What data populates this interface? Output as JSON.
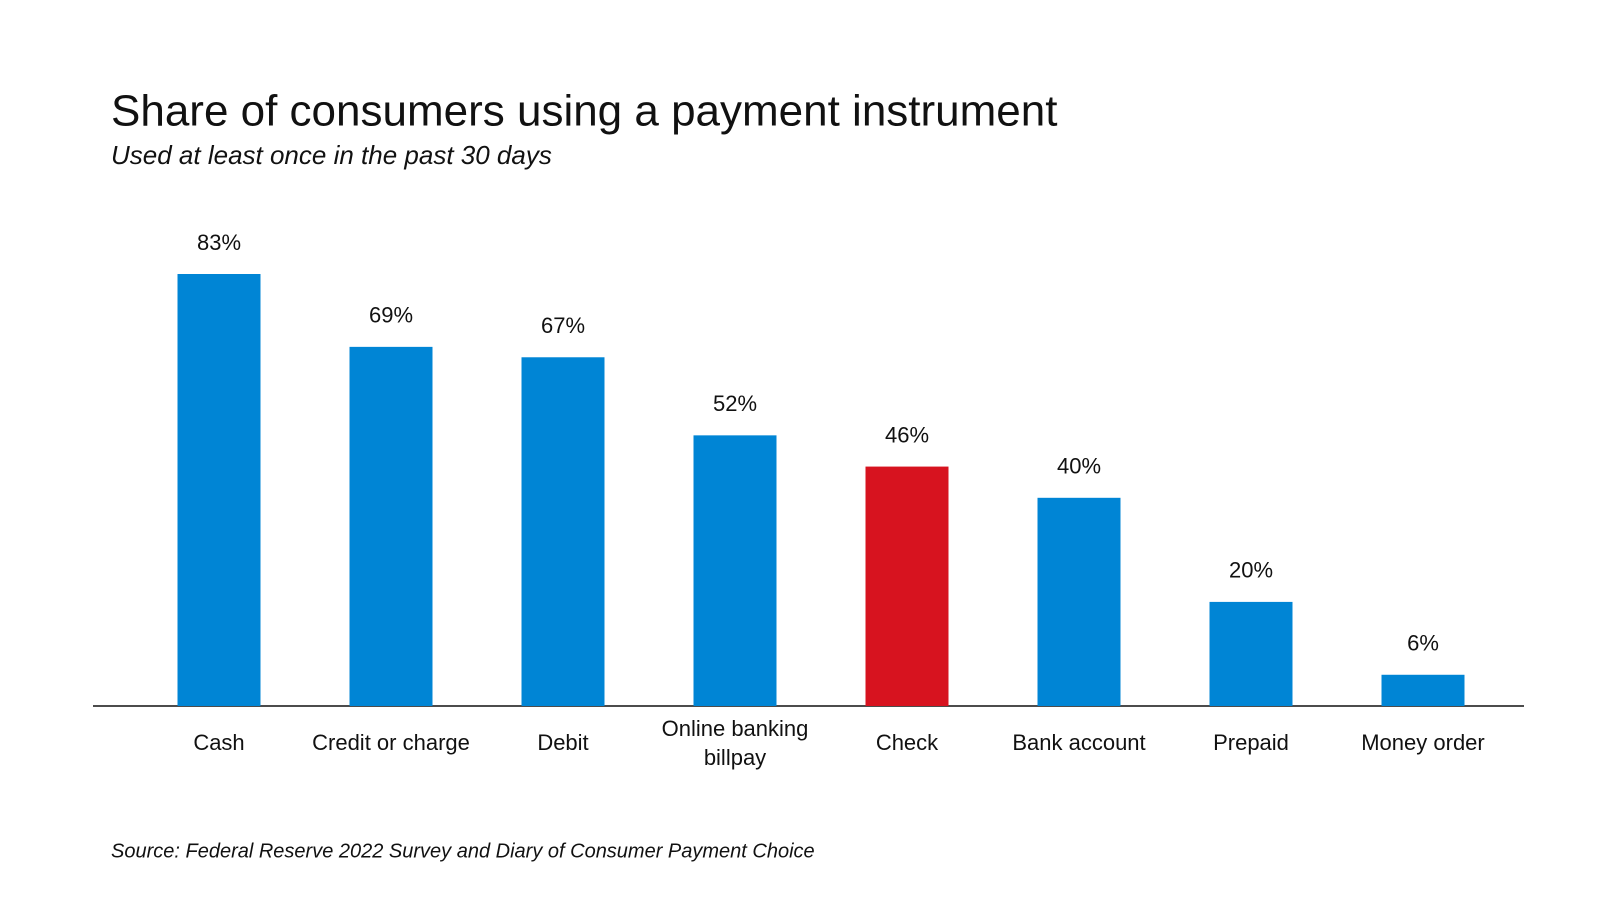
{
  "chart_data": {
    "type": "bar",
    "title": "Share of consumers using a payment instrument",
    "subtitle": "Used at least once in the past 30 days",
    "source": "Source: Federal Reserve 2022 Survey and Diary of Consumer Payment Choice",
    "categories": [
      "Cash",
      "Credit or charge",
      "Debit",
      "Online banking billpay",
      "Check",
      "Bank account",
      "Prepaid",
      "Money order"
    ],
    "values": [
      83,
      69,
      67,
      52,
      46,
      40,
      20,
      6
    ],
    "value_labels": [
      "83%",
      "69%",
      "67%",
      "52%",
      "46%",
      "40%",
      "20%",
      "6%"
    ],
    "colors": [
      "#0085d5",
      "#0085d5",
      "#0085d5",
      "#0085d5",
      "#d7131f",
      "#0085d5",
      "#0085d5",
      "#0085d5"
    ]
  }
}
